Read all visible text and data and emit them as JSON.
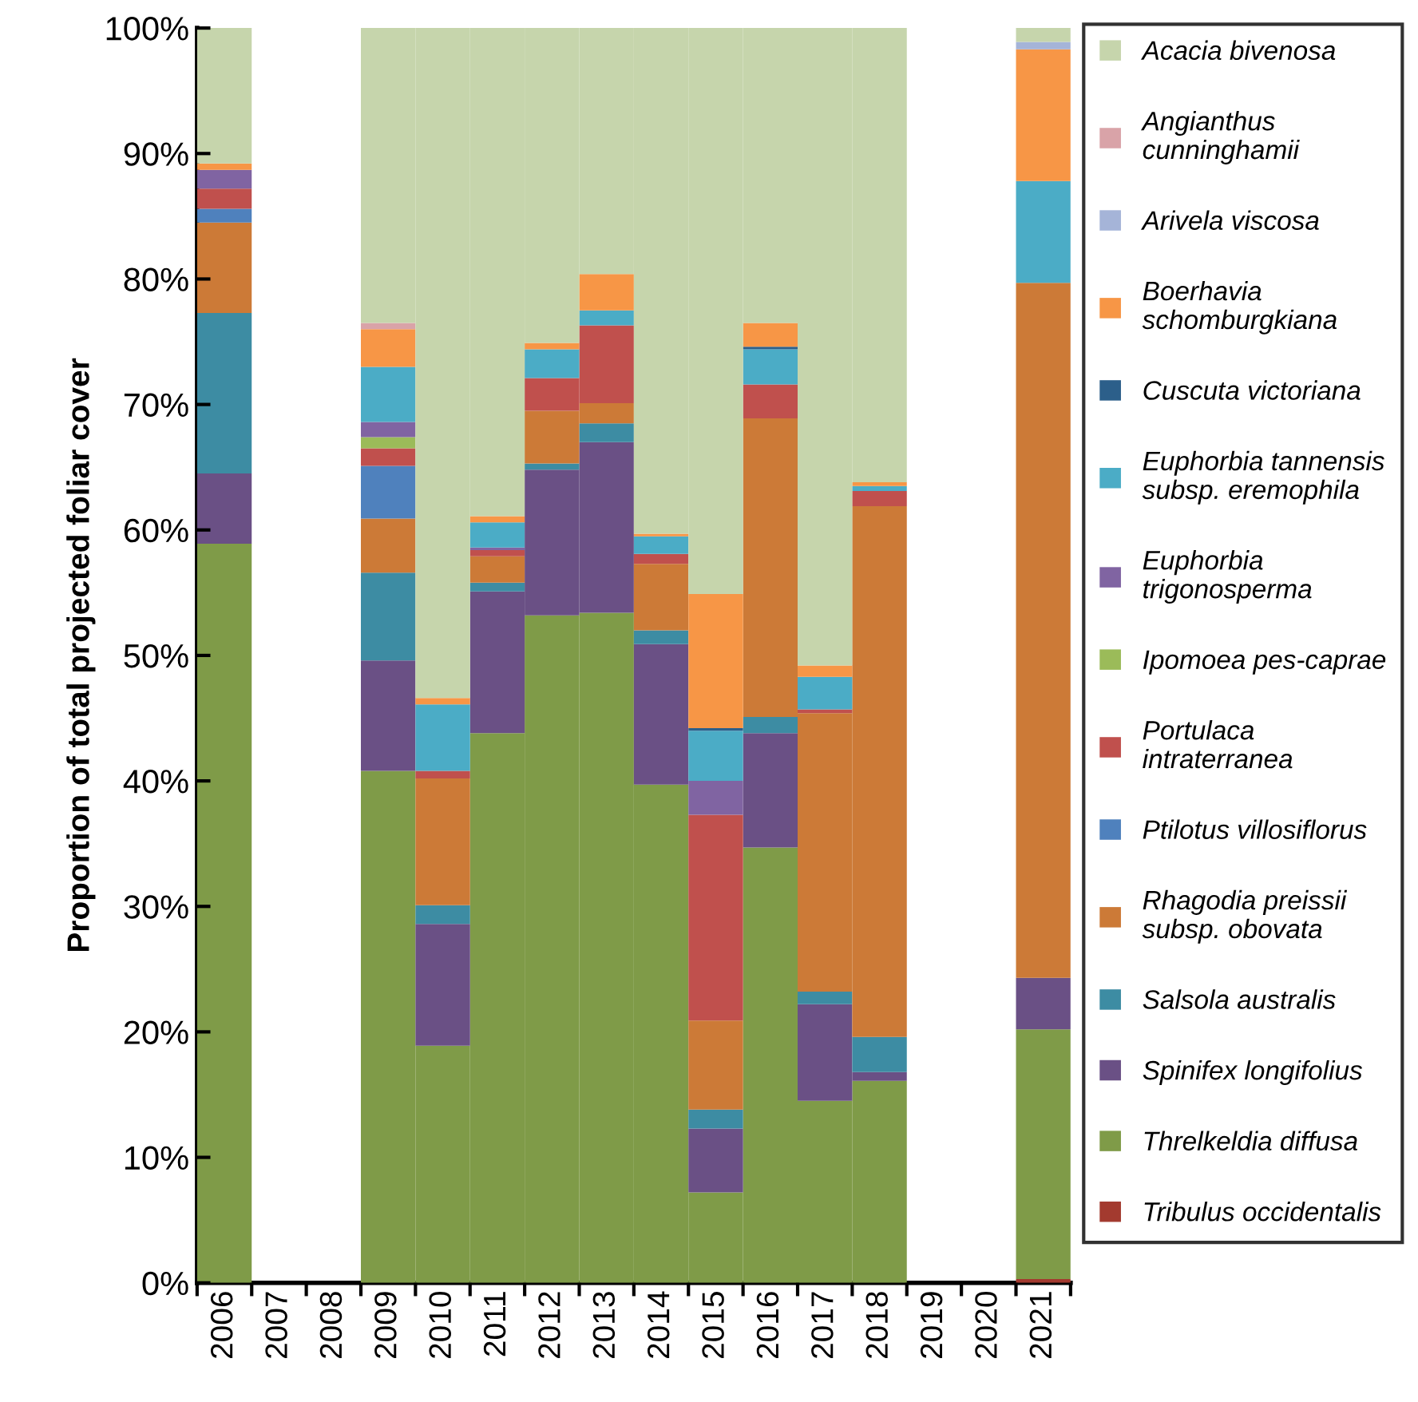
{
  "chart_data": {
    "type": "bar",
    "stacked": true,
    "ylabel": "Proportion of total projected foliar cover",
    "categories": [
      "2006",
      "2007",
      "2008",
      "2009",
      "2010",
      "2011",
      "2012",
      "2013",
      "2014",
      "2015",
      "2016",
      "2017",
      "2018",
      "2019",
      "2020",
      "2021"
    ],
    "ylim": [
      0,
      100
    ],
    "yticks": [
      {
        "value": 0,
        "label": "0%"
      },
      {
        "value": 10,
        "label": "10%"
      },
      {
        "value": 20,
        "label": "20%"
      },
      {
        "value": 30,
        "label": "30%"
      },
      {
        "value": 40,
        "label": "40%"
      },
      {
        "value": 50,
        "label": "50%"
      },
      {
        "value": 60,
        "label": "60%"
      },
      {
        "value": 70,
        "label": "70%"
      },
      {
        "value": 80,
        "label": "80%"
      },
      {
        "value": 90,
        "label": "90%"
      },
      {
        "value": 100,
        "label": "100%"
      }
    ],
    "grid": false,
    "legend": "right",
    "series": [
      {
        "name": "Tribulus occidentalis",
        "color": "#a33a2f",
        "values": [
          0,
          0,
          0,
          0,
          0,
          0,
          0,
          0,
          0,
          0,
          0,
          0,
          0,
          0,
          0,
          0.3
        ]
      },
      {
        "name": "Threlkeldia diffusa",
        "color": "#7f9b48",
        "values": [
          58.9,
          0,
          0,
          40.8,
          18.9,
          43.8,
          53.2,
          53.4,
          39.7,
          7.2,
          34.7,
          14.5,
          16.1,
          0,
          0,
          19.9
        ]
      },
      {
        "name": "Spinifex longifolius",
        "color": "#6a5085",
        "values": [
          5.6,
          0,
          0,
          8.8,
          9.7,
          11.3,
          11.6,
          13.6,
          11.2,
          5.1,
          9.1,
          7.7,
          0.7,
          0,
          0,
          4.1
        ]
      },
      {
        "name": "Salsola australis",
        "color": "#3d8ca3",
        "values": [
          12.8,
          0,
          0,
          7.0,
          1.5,
          0.7,
          0.5,
          1.5,
          1.1,
          1.5,
          1.3,
          1.0,
          2.8,
          0,
          0,
          0
        ]
      },
      {
        "name": "Rhagodia preissii\nsubsp. obovata",
        "color": "#cc7a37",
        "values": [
          7.2,
          0,
          0,
          4.3,
          10.1,
          2.1,
          4.2,
          1.6,
          5.3,
          7.1,
          23.8,
          22.2,
          42.3,
          0,
          0,
          55.4
        ]
      },
      {
        "name": "Ptilotus villosiflorus",
        "color": "#4f81bd",
        "values": [
          1.1,
          0,
          0,
          4.2,
          0,
          0,
          0,
          0,
          0,
          0,
          0,
          0,
          0,
          0,
          0,
          0
        ]
      },
      {
        "name": "Portulaca\nintraterranea",
        "color": "#c0504d",
        "values": [
          1.6,
          0,
          0,
          1.4,
          0.6,
          0.5,
          2.6,
          6.2,
          0.8,
          16.4,
          2.7,
          0.3,
          1.2,
          0,
          0,
          0
        ]
      },
      {
        "name": "Ipomoea pes-caprae",
        "color": "#9bbb59",
        "values": [
          0,
          0,
          0,
          0.9,
          0,
          0,
          0,
          0,
          0,
          0,
          0,
          0,
          0,
          0,
          0,
          0
        ]
      },
      {
        "name": "Euphorbia\ntrigonosperma",
        "color": "#8064a2",
        "values": [
          1.5,
          0,
          0,
          1.2,
          0,
          0.2,
          0,
          0,
          0,
          2.7,
          0,
          0,
          0,
          0,
          0,
          0
        ]
      },
      {
        "name": "Euphorbia tannensis\nsubsp. eremophila",
        "color": "#4bacc6",
        "values": [
          0,
          0,
          0,
          4.4,
          5.3,
          2.0,
          2.3,
          1.2,
          1.4,
          4.0,
          2.8,
          2.6,
          0.4,
          0,
          0,
          8.1
        ]
      },
      {
        "name": "Cuscuta victoriana",
        "color": "#2c5f8a",
        "values": [
          0,
          0,
          0,
          0,
          0,
          0,
          0,
          0,
          0,
          0.2,
          0.2,
          0,
          0,
          0,
          0,
          0
        ]
      },
      {
        "name": "Boerhavia\nschomburgkiana",
        "color": "#f79646",
        "values": [
          0.5,
          0,
          0,
          3.0,
          0.5,
          0.5,
          0.5,
          2.9,
          0.2,
          10.7,
          1.9,
          0.9,
          0.3,
          0,
          0,
          10.5
        ]
      },
      {
        "name": "Arivela viscosa",
        "color": "#a5b4d8",
        "values": [
          0,
          0,
          0,
          0,
          0,
          0,
          0,
          0,
          0,
          0,
          0,
          0,
          0,
          0,
          0,
          0.6
        ]
      },
      {
        "name": "Angianthus\ncunninghamii",
        "color": "#d9a3a8",
        "values": [
          0,
          0,
          0,
          0.5,
          0,
          0,
          0,
          0,
          0,
          0,
          0,
          0,
          0,
          0,
          0,
          0
        ]
      },
      {
        "name": "Acacia bivenosa",
        "color": "#c6d5ac",
        "values": [
          10.8,
          0,
          0,
          23.5,
          53.4,
          38.9,
          25.1,
          19.6,
          40.3,
          45.1,
          23.5,
          50.8,
          36.2,
          0,
          0,
          1.1
        ]
      }
    ]
  }
}
